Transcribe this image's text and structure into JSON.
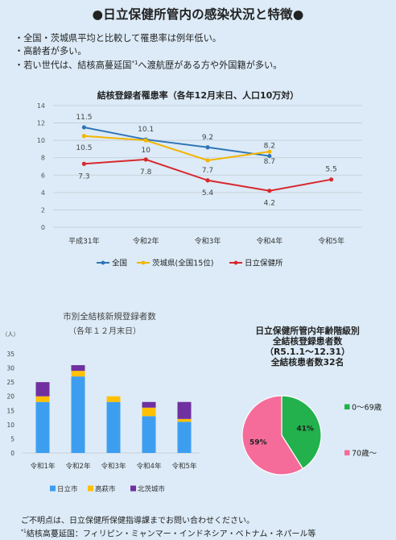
{
  "title": "●日立保健所管内の感染状況と特徴●",
  "bullets": [
    "・全国・茨城県平均と比較して罹患率は例年低い。",
    "・高齢者が多い。",
    "・若い世代は、結核高蔓延国",
    "へ渡航歴がある方や外国籍が多い。"
  ],
  "footnote_mark": "*1",
  "colors": {
    "background": "#dcebf7",
    "national": "#2f75b6",
    "ibaraki": "#f4b400",
    "hitachi_hc": "#d9282e",
    "hitachi_city": "#3d9ef0",
    "takahagi": "#ffc000",
    "kitaibaraki": "#7030a0",
    "pie_young": "#22b14c",
    "pie_old": "#f56b9a"
  },
  "chart_data": [
    {
      "type": "line",
      "title": "結核登録者罹患率（各年12月末日、人口10万対）",
      "categories": [
        "平成31年",
        "令和2年",
        "令和3年",
        "令和4年",
        "令和5年"
      ],
      "ylim": [
        0,
        14
      ],
      "yticks": [
        "0",
        "2",
        "4",
        "6",
        "8",
        "10",
        "12",
        "14"
      ],
      "grid": true,
      "legend_position": "bottom",
      "series": [
        {
          "name": "全国",
          "values": [
            11.5,
            10.1,
            9.2,
            8.2,
            null
          ],
          "labels": [
            "11.5",
            "10.1",
            "9.2",
            "8.2",
            ""
          ],
          "color": "#2f75b6"
        },
        {
          "name": "茨城県(全国15位)",
          "values": [
            10.5,
            10.0,
            7.7,
            8.7,
            null
          ],
          "labels": [
            "10.5",
            "10",
            "7.7",
            "8.7",
            ""
          ],
          "color": "#f4b400"
        },
        {
          "name": "日立保健所",
          "values": [
            7.3,
            7.8,
            5.4,
            4.2,
            5.5
          ],
          "labels": [
            "7.3",
            "7.8",
            "5.4",
            "4.2",
            "5.5"
          ],
          "color": "#d9282e"
        }
      ]
    },
    {
      "type": "bar",
      "stacked": true,
      "title": "市別全結核新規登録者数",
      "subtitle": "（各年１２月末日）",
      "ylabel": "（人）",
      "categories": [
        "令和1年",
        "令和2年",
        "令和3年",
        "令和4年",
        "令和5年"
      ],
      "ylim": [
        0,
        35
      ],
      "yticks": [
        "0",
        "5",
        "10",
        "15",
        "20",
        "25",
        "30",
        "35"
      ],
      "legend_position": "bottom",
      "series": [
        {
          "name": "日立市",
          "values": [
            18,
            27,
            18,
            13,
            11
          ],
          "color": "#3d9ef0"
        },
        {
          "name": "高萩市",
          "values": [
            2,
            2,
            2,
            3,
            1
          ],
          "color": "#ffc000"
        },
        {
          "name": "北茨城市",
          "values": [
            5,
            2,
            0,
            2,
            6
          ],
          "color": "#7030a0"
        }
      ]
    },
    {
      "type": "pie",
      "title_lines": [
        "日立保健所管内年齢階級別",
        "全結核登録患者数",
        "（R5.1.1～12.31）",
        "全結核患者数32名"
      ],
      "slices": [
        {
          "name": "0～69歳",
          "value": 41,
          "label": "41%",
          "color": "#22b14c"
        },
        {
          "name": "70歳～",
          "value": 59,
          "label": "59%",
          "color": "#f56b9a"
        }
      ]
    }
  ],
  "footer": [
    "ご不明点は、日立保健所保健指導課までお問い合わせください。",
    "結核高蔓延国：フィリピン・ミャンマー・インドネシア・ベトナム・ネパール等"
  ]
}
